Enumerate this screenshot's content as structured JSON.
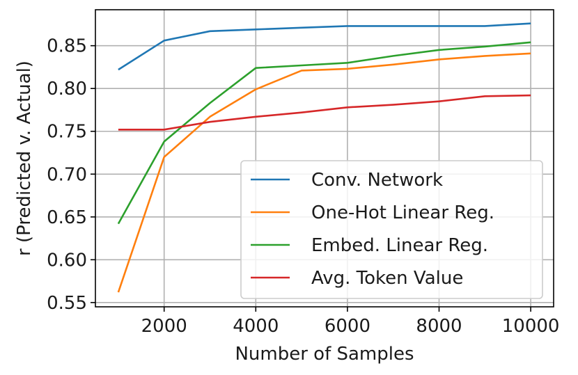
{
  "chart_data": {
    "type": "line",
    "title": "",
    "xlabel": "Number of Samples",
    "ylabel": "r (Predicted v. Actual)",
    "xlim": [
      500,
      10500
    ],
    "ylim": [
      0.545,
      0.892
    ],
    "xticks": [
      2000,
      4000,
      6000,
      8000,
      10000
    ],
    "xtick_labels": [
      "2000",
      "4000",
      "6000",
      "8000",
      "10000"
    ],
    "yticks": [
      0.55,
      0.6,
      0.65,
      0.7,
      0.75,
      0.8,
      0.85
    ],
    "ytick_labels": [
      "0.55",
      "0.60",
      "0.65",
      "0.70",
      "0.75",
      "0.80",
      "0.85"
    ],
    "grid": true,
    "legend_position": "lower-right",
    "x": [
      1000,
      2000,
      3000,
      4000,
      5000,
      6000,
      7000,
      8000,
      9000,
      10000
    ],
    "series": [
      {
        "name": "Conv. Network",
        "color": "#1f77b4",
        "values": [
          0.822,
          0.856,
          0.867,
          0.869,
          0.871,
          0.873,
          0.873,
          0.873,
          0.873,
          0.876
        ]
      },
      {
        "name": "One-Hot Linear Reg.",
        "color": "#ff7f0e",
        "values": [
          0.562,
          0.72,
          0.767,
          0.799,
          0.821,
          0.823,
          0.828,
          0.834,
          0.838,
          0.841
        ]
      },
      {
        "name": "Embed. Linear Reg.",
        "color": "#2ca02c",
        "values": [
          0.642,
          0.738,
          0.783,
          0.824,
          0.827,
          0.83,
          0.838,
          0.845,
          0.849,
          0.854
        ]
      },
      {
        "name": "Avg. Token Value",
        "color": "#d62728",
        "values": [
          0.752,
          0.752,
          0.761,
          0.767,
          0.772,
          0.778,
          0.781,
          0.785,
          0.791,
          0.792
        ]
      }
    ]
  }
}
